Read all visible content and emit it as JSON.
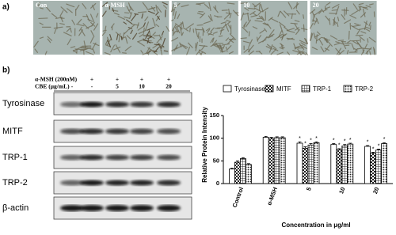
{
  "panel_a": {
    "label": "a)",
    "images": [
      "Con",
      "α-MSH",
      "5",
      "10",
      "20"
    ]
  },
  "panel_b": {
    "label": "b)",
    "treatments": [
      {
        "name": "α-MSH (200nM)",
        "values": [
          "-",
          "+",
          "+",
          "+",
          "+"
        ]
      },
      {
        "name": "CBE (μg/mL)",
        "values": [
          "-",
          "-",
          "5",
          "10",
          "20"
        ]
      }
    ],
    "blots": [
      "Tyrosinase",
      "MITF",
      "TRP-1",
      "TRP-2",
      "β-actin"
    ]
  },
  "chart_data": {
    "type": "bar",
    "y_label": "Relative Protein Intensity",
    "x_label": "Concentration in μg/ml",
    "categories": [
      "Control",
      "α-MSH",
      "5",
      "10",
      "20"
    ],
    "series": [
      {
        "name": "Tyrosinase",
        "color": "#ffffff",
        "pattern": "solid",
        "values": [
          32,
          102,
          89,
          86,
          82
        ],
        "errors": [
          2,
          2,
          3,
          2,
          2
        ],
        "markers": [
          null,
          null,
          "*",
          "*",
          "*"
        ]
      },
      {
        "name": "MITF",
        "color": "#222222",
        "pattern": "crosshatch",
        "values": [
          47,
          100,
          78,
          75,
          67
        ],
        "errors": [
          3,
          2,
          3,
          2,
          2
        ],
        "markers": [
          null,
          null,
          "*",
          "*",
          "*"
        ]
      },
      {
        "name": "TRP-1",
        "color": "#222222",
        "pattern": "grid",
        "values": [
          55,
          101,
          85,
          83,
          74
        ],
        "errors": [
          2,
          2,
          3,
          3,
          2
        ],
        "markers": [
          null,
          null,
          "*",
          "*",
          "*"
        ]
      },
      {
        "name": "TRP-2",
        "color": "#222222",
        "pattern": "dots",
        "values": [
          42,
          101,
          90,
          87,
          88
        ],
        "errors": [
          2,
          2,
          2,
          2,
          2
        ],
        "markers": [
          null,
          null,
          "*",
          "*",
          "*"
        ]
      }
    ],
    "ylim": [
      0,
      150
    ],
    "yticks": [
      0,
      50,
      100,
      150
    ],
    "grid": false
  }
}
